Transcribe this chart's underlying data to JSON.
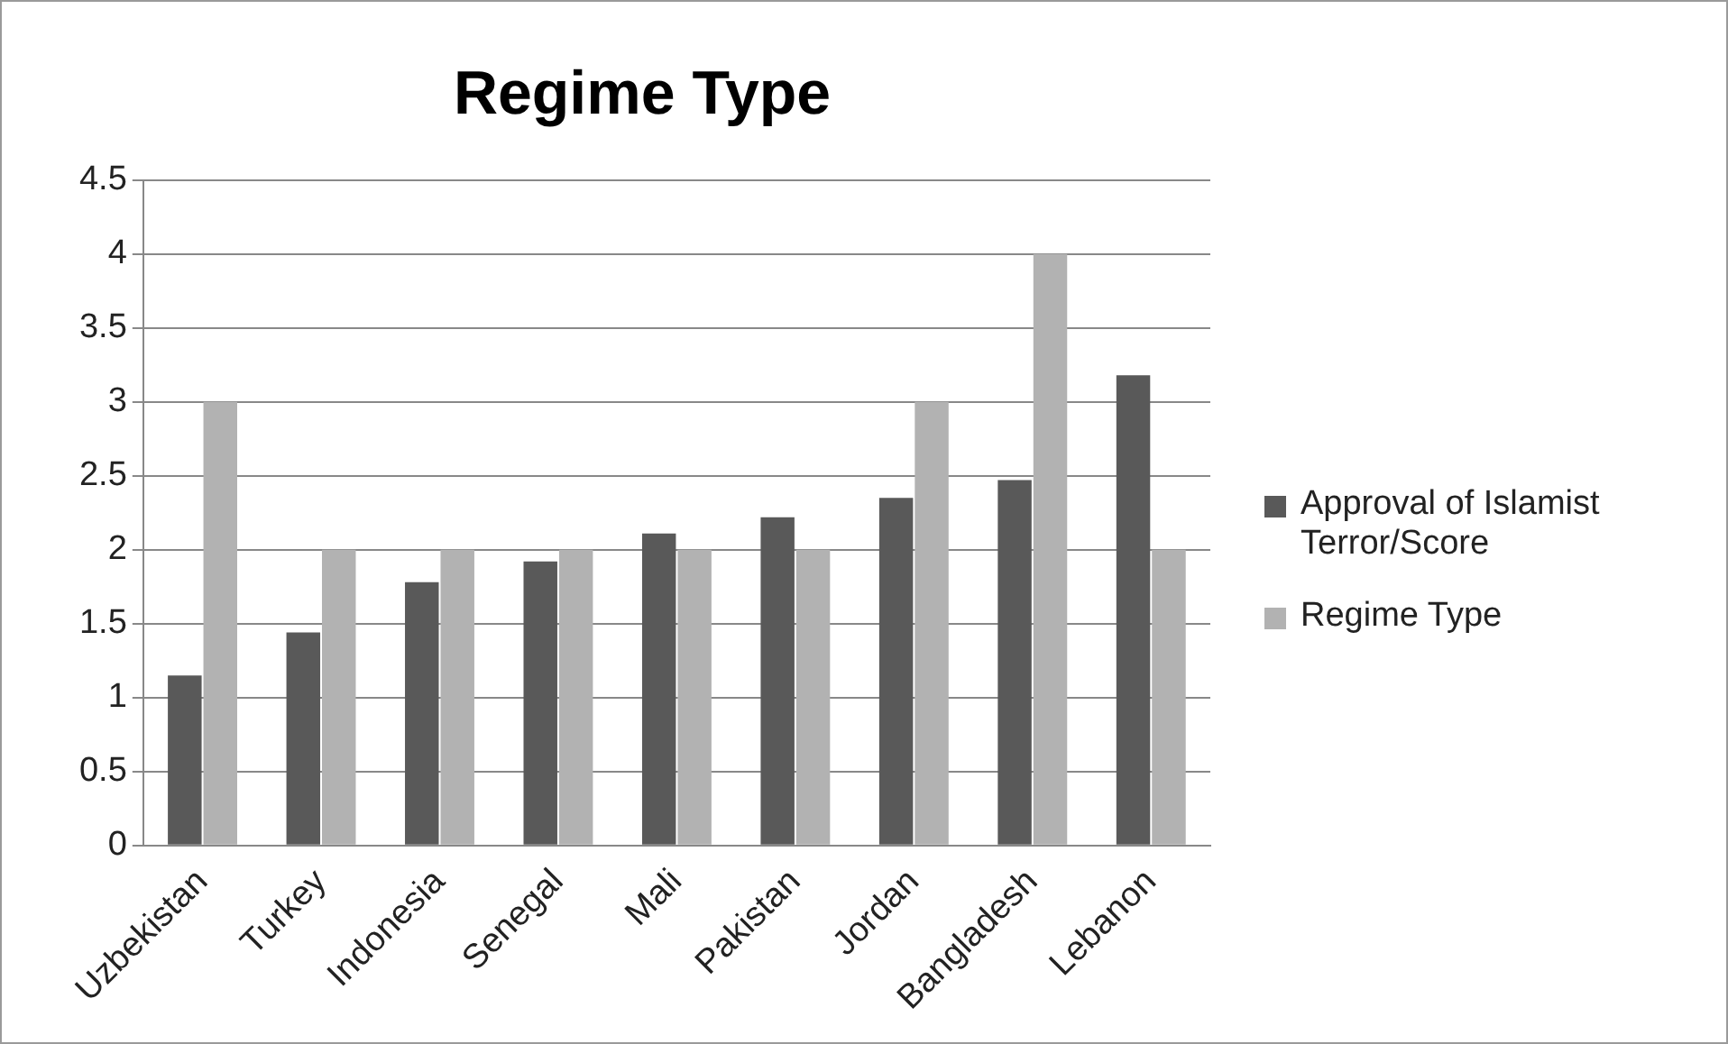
{
  "chart_data": {
    "type": "bar",
    "title": "Regime Type",
    "categories": [
      "Uzbekistan",
      "Turkey",
      "Indonesia",
      "Senegal",
      "Mali",
      "Pakistan",
      "Jordan",
      "Bangladesh",
      "Lebanon"
    ],
    "series": [
      {
        "name": "Approval of Islamist Terror/Score",
        "color": "#595959",
        "values": [
          1.15,
          1.44,
          1.78,
          1.92,
          2.11,
          2.22,
          2.35,
          2.47,
          3.18
        ]
      },
      {
        "name": "Regime Type",
        "color": "#b2b2b2",
        "values": [
          3,
          2,
          2,
          2,
          2,
          2,
          3,
          4,
          2
        ]
      }
    ],
    "ylim": [
      0,
      4.5
    ],
    "yticks": [
      0,
      0.5,
      1,
      1.5,
      2,
      2.5,
      3,
      3.5,
      4,
      4.5
    ],
    "grid": "y",
    "legend": "right"
  }
}
